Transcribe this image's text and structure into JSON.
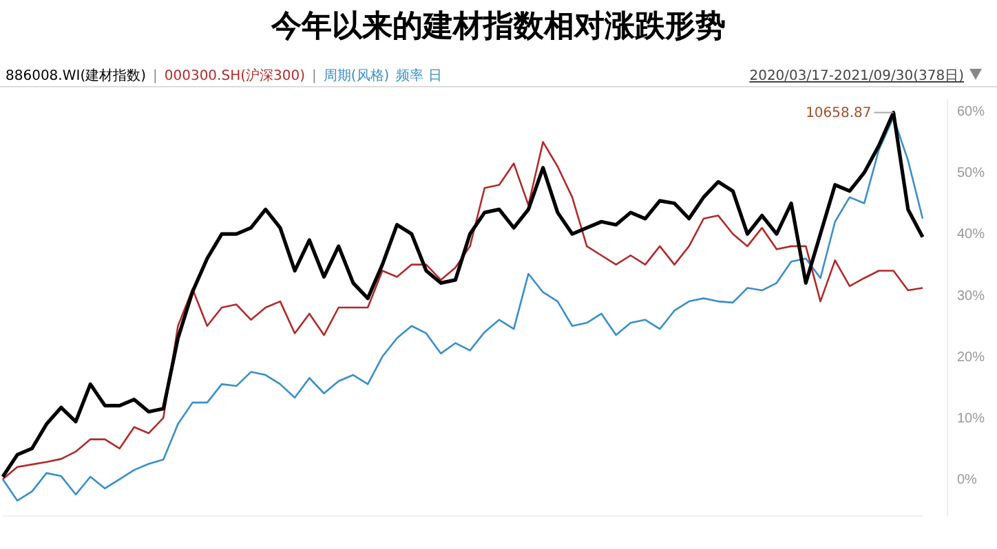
{
  "chart_data": {
    "type": "line",
    "title": "今年以来的建材指数相对涨跌形势",
    "categories": [
      null,
      null,
      null,
      null,
      null,
      null,
      null,
      null,
      null,
      null,
      null,
      null,
      null,
      null,
      null,
      null,
      null,
      null,
      null,
      null,
      null,
      null,
      null,
      null,
      null,
      null,
      null,
      null,
      null,
      null,
      null,
      null,
      null,
      null,
      null,
      null,
      null,
      null,
      null,
      null,
      null,
      null,
      null,
      null,
      null,
      null,
      null,
      null,
      null,
      null,
      null,
      null,
      null,
      null,
      null,
      null,
      null,
      null,
      null,
      null,
      null,
      null,
      null,
      null
    ],
    "ylim": [
      -6,
      62
    ],
    "yticks": [
      {
        "value": 0,
        "label": "0%"
      },
      {
        "value": 10,
        "label": "10%"
      },
      {
        "value": 20,
        "label": "20%"
      },
      {
        "value": 30,
        "label": "30%"
      },
      {
        "value": 40,
        "label": "40%"
      },
      {
        "value": 50,
        "label": "50%"
      },
      {
        "value": 60,
        "label": "60%"
      }
    ],
    "tick_labels": "y",
    "grid": false,
    "marker": "none",
    "line_style": "solid",
    "annotations": [
      "|",
      "|",
      "频率 日",
      "2020/03/17-2021/09/30(378日)",
      "10658.87"
    ],
    "series": [
      {
        "name": "886008.WI(建材指数)",
        "color": "#000000",
        "values": [
          0.4,
          4,
          5,
          9,
          11.7,
          9.4,
          15.5,
          12,
          12,
          13,
          11,
          11.5,
          23,
          30.6,
          36,
          40,
          40,
          41,
          44,
          41,
          34,
          39,
          33,
          38,
          32,
          29.5,
          35,
          41.5,
          40,
          34,
          32,
          32.5,
          40,
          43.5,
          44,
          41,
          44,
          50.8,
          43.5,
          40,
          41,
          42,
          41.5,
          43.5,
          42.5,
          45.4,
          45,
          42.5,
          46,
          48.5,
          47,
          40,
          43,
          40,
          45,
          32,
          40,
          48,
          47,
          50,
          54.4,
          59.8,
          44,
          39.5
        ]
      },
      {
        "name": "000300.SH(沪深300)",
        "color": "#b22a2a",
        "values": [
          0,
          2,
          2.4,
          2.8,
          3.3,
          4.5,
          6.5,
          6.5,
          5,
          8.5,
          7.5,
          10,
          25,
          31,
          25,
          28,
          28.5,
          26,
          28,
          29,
          23.8,
          27,
          23.5,
          28,
          28,
          28,
          34,
          33,
          35,
          35,
          32.5,
          34.5,
          38,
          47.5,
          48,
          51.5,
          44.7,
          55,
          51,
          46,
          38,
          36.5,
          35,
          36.5,
          35,
          38,
          35,
          38,
          42.5,
          43,
          40,
          38,
          41,
          37.5,
          38,
          38,
          29,
          35.7,
          31.5,
          32.8,
          34,
          34,
          30.8,
          31.2
        ]
      },
      {
        "name": "周期(风格)",
        "color": "#3a8fc8",
        "values": [
          0,
          -3.5,
          -2,
          1,
          0.5,
          -2.5,
          0.4,
          -1.5,
          0,
          1.5,
          2.5,
          3.2,
          9,
          12.5,
          12.5,
          15.5,
          15.2,
          17.5,
          17,
          15.5,
          13.3,
          16.5,
          14,
          16,
          17,
          15.5,
          20,
          23,
          25,
          23.8,
          20.5,
          22.2,
          21,
          24,
          26,
          24.5,
          33.5,
          30.5,
          29,
          25,
          25.5,
          27,
          23.5,
          25.5,
          26,
          24.5,
          27.5,
          29,
          29.5,
          29,
          28.8,
          31.2,
          30.8,
          32,
          35.5,
          36,
          32.8,
          42,
          46,
          45,
          53.7,
          59,
          52,
          42.5
        ]
      }
    ]
  }
}
